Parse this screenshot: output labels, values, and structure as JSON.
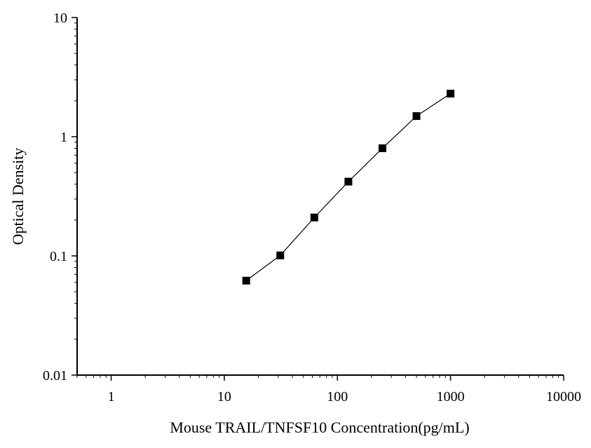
{
  "chart_data": {
    "type": "scatter",
    "title": "",
    "xlabel": "Mouse TRAIL/TNFSF10 Concentration(pg/mL)",
    "ylabel": "Optical Density",
    "x_scale": "log",
    "y_scale": "log",
    "xlim": [
      0.5,
      10000
    ],
    "ylim": [
      0.01,
      10
    ],
    "x_ticks": [
      1,
      10,
      100,
      1000,
      10000
    ],
    "x_tick_labels": [
      "1",
      "10",
      "100",
      "1000",
      "10000"
    ],
    "y_ticks": [
      0.01,
      0.1,
      1,
      10
    ],
    "y_tick_labels": [
      "0.01",
      "0.1",
      "1",
      "10"
    ],
    "grid": false,
    "legend": "none",
    "marker": "square",
    "series": [
      {
        "x": [
          15.625,
          31.25,
          62.5,
          125,
          250,
          500,
          1000
        ],
        "y": [
          0.062,
          0.101,
          0.21,
          0.42,
          0.8,
          1.49,
          2.3
        ],
        "connected": true
      }
    ],
    "colors": {
      "marker": "#000000",
      "line": "#000000",
      "axis": "#000000"
    }
  }
}
